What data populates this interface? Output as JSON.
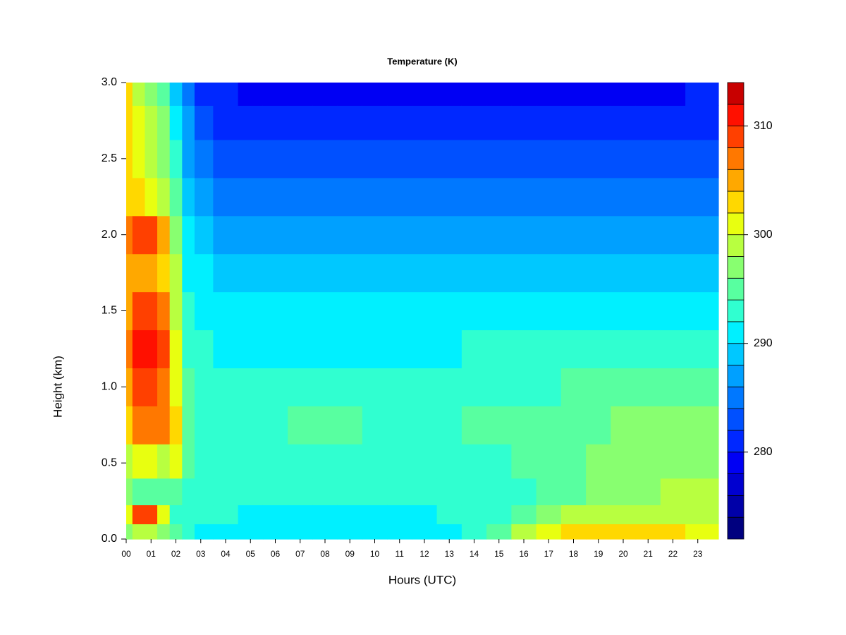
{
  "chart_data": {
    "type": "heatmap",
    "title": "Temperature (K)",
    "xlabel": "Hours (UTC)",
    "ylabel": "Height (km)",
    "x": [
      0,
      0.5,
      1,
      1.5,
      2,
      2.5,
      3,
      4,
      5,
      6,
      7,
      8,
      9,
      10,
      11,
      12,
      13,
      14,
      15,
      16,
      17,
      18,
      19,
      20,
      21,
      22,
      23
    ],
    "y": [
      0.05,
      0.15,
      0.3,
      0.5,
      0.75,
      1.0,
      1.25,
      1.5,
      1.75,
      2.0,
      2.25,
      2.5,
      2.75,
      2.95
    ],
    "z": [
      [
        296,
        300,
        296,
        298,
        302,
        304,
        306,
        305,
        304,
        306,
        303,
        302,
        302,
        302
      ],
      [
        298,
        308,
        294,
        300,
        306,
        308,
        310,
        308,
        305,
        308,
        302,
        300,
        300,
        299
      ],
      [
        298,
        308,
        294,
        300,
        306,
        308,
        311,
        309,
        305,
        308,
        301,
        299,
        298,
        297
      ],
      [
        296,
        300,
        294,
        299,
        306,
        307,
        308,
        306,
        303,
        304,
        299,
        297,
        296,
        295
      ],
      [
        294,
        292,
        294,
        300,
        302,
        301,
        300,
        299,
        298,
        297,
        294,
        292,
        290,
        289
      ],
      [
        292,
        292,
        292,
        294,
        294,
        294,
        293,
        292,
        291,
        290,
        289,
        287,
        286,
        285
      ],
      [
        291,
        292,
        292,
        293,
        293,
        293,
        292,
        291,
        290,
        288,
        286,
        284,
        282,
        281
      ],
      [
        291,
        292,
        292,
        293,
        293,
        292,
        291,
        290,
        288,
        286,
        284,
        282,
        281,
        280
      ],
      [
        291,
        291,
        292,
        293,
        293,
        293,
        291,
        290,
        288,
        286,
        284,
        282,
        280,
        279
      ],
      [
        291,
        291,
        292,
        293,
        293,
        293,
        291,
        290,
        288,
        286,
        284,
        282,
        280,
        279
      ],
      [
        291,
        291,
        292,
        293,
        294,
        293,
        291,
        290,
        288,
        286,
        284,
        282,
        280,
        279
      ],
      [
        291,
        291,
        292,
        293,
        294,
        293,
        291,
        290,
        288,
        286,
        284,
        282,
        280,
        279
      ],
      [
        291,
        291,
        292,
        293,
        294,
        293,
        291,
        290,
        288,
        286,
        284,
        282,
        280,
        279
      ],
      [
        291,
        291,
        292,
        293,
        293,
        293,
        291,
        290,
        288,
        286,
        284,
        282,
        280,
        279
      ],
      [
        291,
        291,
        292,
        293,
        293,
        293,
        291,
        290,
        288,
        286,
        284,
        282,
        280,
        279
      ],
      [
        291,
        291,
        292,
        293,
        293,
        293,
        291,
        290,
        288,
        286,
        284,
        282,
        280,
        279
      ],
      [
        291,
        292,
        292,
        293,
        293,
        293,
        291,
        290,
        288,
        286,
        284,
        282,
        280,
        279
      ],
      [
        292,
        292,
        292,
        293,
        294,
        293,
        292,
        290,
        288,
        286,
        284,
        282,
        280,
        279
      ],
      [
        294,
        293,
        292,
        293,
        294,
        293,
        292,
        290,
        288,
        286,
        284,
        282,
        280,
        279
      ],
      [
        298,
        295,
        293,
        294,
        294,
        293,
        292,
        290,
        288,
        286,
        284,
        282,
        280,
        279
      ],
      [
        301,
        297,
        294,
        294,
        294,
        293,
        292,
        290,
        288,
        286,
        284,
        282,
        280,
        279
      ],
      [
        302,
        298,
        295,
        295,
        295,
        294,
        292,
        290,
        288,
        286,
        284,
        282,
        280,
        279
      ],
      [
        302,
        298,
        296,
        296,
        295,
        294,
        292,
        290,
        288,
        286,
        284,
        282,
        280,
        279
      ],
      [
        303,
        299,
        297,
        296,
        296,
        294,
        292,
        290,
        288,
        286,
        284,
        282,
        280,
        279
      ],
      [
        303,
        299,
        297,
        297,
        296,
        294,
        292,
        290,
        288,
        286,
        284,
        282,
        280,
        279
      ],
      [
        302,
        299,
        298,
        297,
        296,
        294,
        292,
        290,
        288,
        286,
        284,
        282,
        280,
        279
      ],
      [
        301,
        299,
        298,
        297,
        296,
        294,
        292,
        290,
        288,
        287,
        285,
        283,
        281,
        280
      ]
    ],
    "xlim": [
      0,
      23.83
    ],
    "ylim": [
      0,
      3.0
    ],
    "xticks": [
      {
        "value": 0,
        "label": "00"
      },
      {
        "value": 1,
        "label": "01"
      },
      {
        "value": 2,
        "label": "02"
      },
      {
        "value": 3,
        "label": "03"
      },
      {
        "value": 4,
        "label": "04"
      },
      {
        "value": 5,
        "label": "05"
      },
      {
        "value": 6,
        "label": "06"
      },
      {
        "value": 7,
        "label": "07"
      },
      {
        "value": 8,
        "label": "08"
      },
      {
        "value": 9,
        "label": "09"
      },
      {
        "value": 10,
        "label": "10"
      },
      {
        "value": 11,
        "label": "11"
      },
      {
        "value": 12,
        "label": "12"
      },
      {
        "value": 13,
        "label": "13"
      },
      {
        "value": 14,
        "label": "14"
      },
      {
        "value": 15,
        "label": "15"
      },
      {
        "value": 16,
        "label": "16"
      },
      {
        "value": 17,
        "label": "17"
      },
      {
        "value": 18,
        "label": "18"
      },
      {
        "value": 19,
        "label": "19"
      },
      {
        "value": 20,
        "label": "20"
      },
      {
        "value": 21,
        "label": "21"
      },
      {
        "value": 22,
        "label": "22"
      },
      {
        "value": 23,
        "label": "23"
      }
    ],
    "yticks": [
      {
        "value": 0,
        "label": "0.0"
      },
      {
        "value": 0.5,
        "label": "0.5"
      },
      {
        "value": 1,
        "label": "1.0"
      },
      {
        "value": 1.5,
        "label": "1.5"
      },
      {
        "value": 2,
        "label": "2.0"
      },
      {
        "value": 2.5,
        "label": "2.5"
      },
      {
        "value": 3,
        "label": "3.0"
      }
    ],
    "levels": [
      272,
      274,
      276,
      278,
      280,
      282,
      284,
      286,
      288,
      290,
      292,
      294,
      296,
      298,
      300,
      302,
      304,
      306,
      308,
      310,
      312,
      314
    ],
    "colors": [
      "#00007f",
      "#0000a8",
      "#0000d0",
      "#0000f4",
      "#0028ff",
      "#0050ff",
      "#0078ff",
      "#00a0ff",
      "#00c8ff",
      "#00f0ff",
      "#30ffd0",
      "#58ffa0",
      "#88ff70",
      "#b8ff40",
      "#e8ff10",
      "#ffd800",
      "#ffa800",
      "#ff7800",
      "#ff4000",
      "#ff1000",
      "#c80000",
      "#800000"
    ],
    "colorbar_ticks": [
      280,
      290,
      300,
      310
    ]
  }
}
